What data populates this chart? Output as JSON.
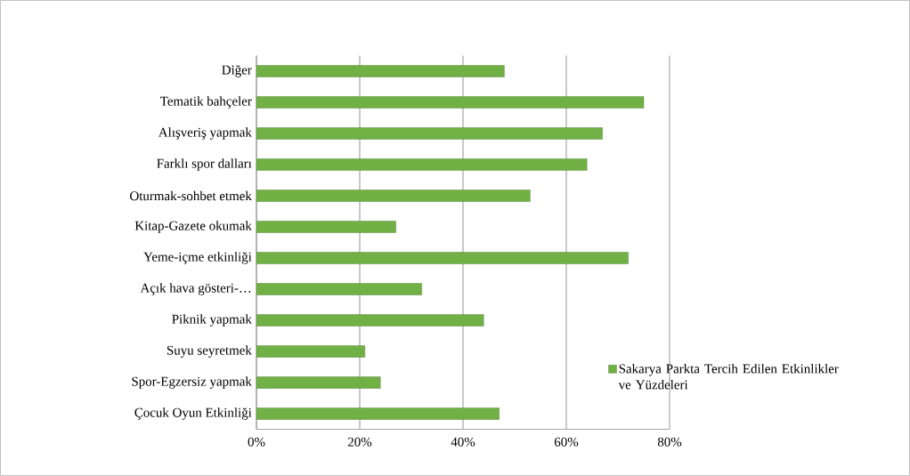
{
  "chart_data": {
    "type": "bar",
    "orientation": "horizontal",
    "categories": [
      "Diğer",
      "Tematik bahçeler",
      "Alışveriş yapmak",
      "Farklı spor dalları",
      "Oturmak-sohbet etmek",
      "Kitap-Gazete okumak",
      "Yeme-içme etkinliği",
      "Açık hava gösteri-…",
      "Piknik yapmak",
      "Suyu seyretmek",
      "Spor-Egzersiz yapmak",
      "Çocuk Oyun Etkinliği"
    ],
    "series": [
      {
        "name": "Sakarya Parkta Tercih Edilen Etkinlikler ve Yüzdeleri",
        "color": "#70b045",
        "values": [
          48,
          75,
          67,
          64,
          53,
          27,
          72,
          32,
          44,
          21,
          24,
          47
        ]
      }
    ],
    "xlim": [
      0,
      80
    ],
    "xticks": [
      {
        "value": 0,
        "label": "0%"
      },
      {
        "value": 20,
        "label": "20%"
      },
      {
        "value": 40,
        "label": "40%"
      },
      {
        "value": 60,
        "label": "60%"
      },
      {
        "value": 80,
        "label": "80%"
      }
    ],
    "grid": "x",
    "legend": "bottom right"
  }
}
